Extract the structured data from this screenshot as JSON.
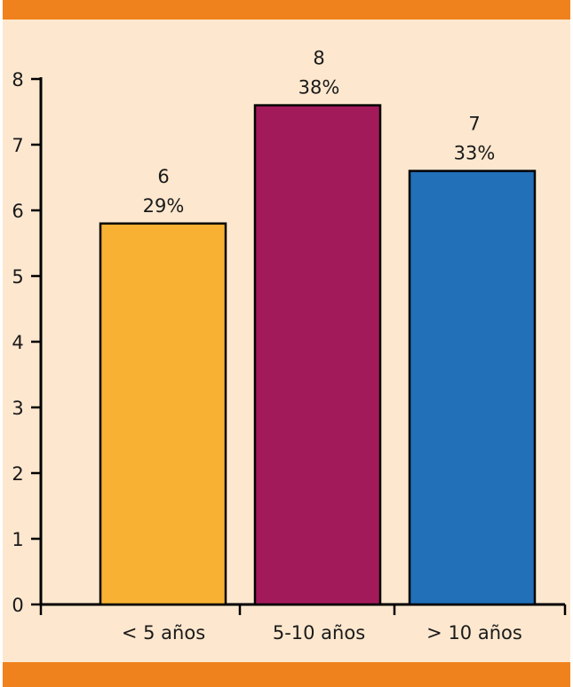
{
  "colors": {
    "frame_band": "#f0821d",
    "panel_bg": "#fde8cf",
    "axis": "#000000",
    "bar_stroke": "#000000"
  },
  "chart_data": {
    "type": "bar",
    "title": "",
    "xlabel": "",
    "ylabel": "",
    "categories": [
      "< 5 años",
      "5-10 años",
      "> 10 años"
    ],
    "values": [
      6,
      8,
      7
    ],
    "plotted_values": [
      5.8,
      7.6,
      6.6
    ],
    "percent_labels": [
      "29%",
      "38%",
      "33%"
    ],
    "count_labels": [
      "6",
      "8",
      "7"
    ],
    "bar_colors": [
      "#f8b133",
      "#a31a5a",
      "#2170b8"
    ],
    "ylim": [
      0,
      8
    ],
    "yticks": [
      0,
      1,
      2,
      3,
      4,
      5,
      6,
      7,
      8
    ],
    "ytick_labels": [
      "0",
      "1",
      "2",
      "3",
      "4",
      "5",
      "6",
      "7",
      "8"
    ],
    "grid": false,
    "legend": "none"
  }
}
